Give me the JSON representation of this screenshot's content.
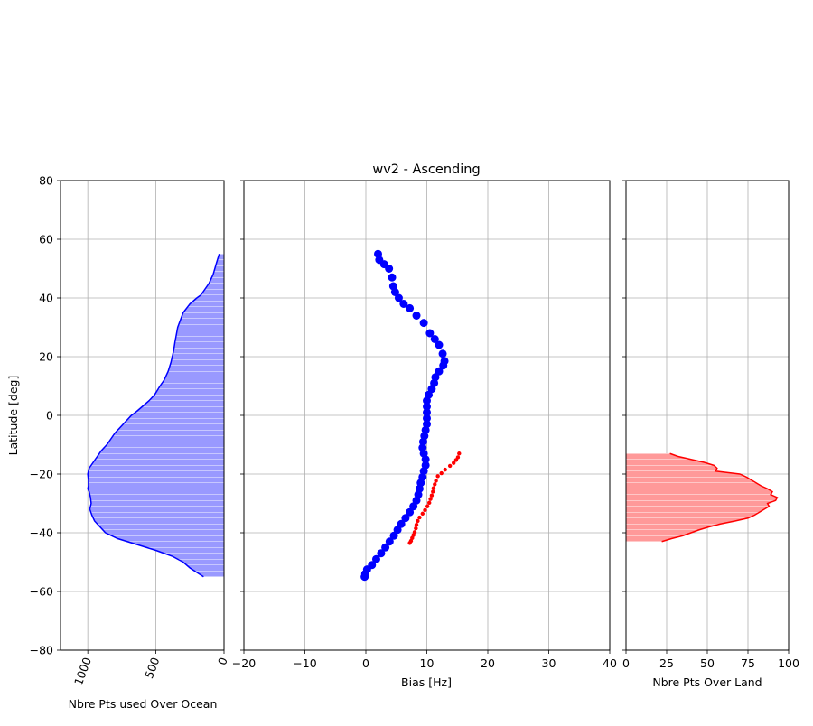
{
  "chart_data": [
    {
      "panel": "left",
      "type": "area",
      "orientation": "horizontal",
      "title": "",
      "xlabel": "Nbre Pts used Over Ocean",
      "ylabel": "Latitude [deg]",
      "xlim": [
        1200,
        0
      ],
      "ylim": [
        -80,
        80
      ],
      "xticks": [
        "1000",
        "500",
        "0"
      ],
      "xtick_values": [
        1000,
        500,
        0
      ],
      "xtick_rotation": "rotated ~70°",
      "yticks": [
        "80",
        "60",
        "40",
        "20",
        "0",
        "−20",
        "−40",
        "−60",
        "−80"
      ],
      "ytick_values": [
        80,
        60,
        40,
        20,
        0,
        -20,
        -40,
        -60,
        -80
      ],
      "grid": true,
      "color": "#0000ff",
      "fill_color": "#9999ff",
      "series": [
        {
          "lat": [
            55,
            52,
            48,
            45,
            43,
            41,
            40,
            38,
            35,
            30,
            25,
            22,
            20,
            18,
            15,
            12,
            10,
            7,
            5,
            3,
            1,
            0,
            -2,
            -4,
            -6,
            -8,
            -10,
            -12,
            -14,
            -16,
            -18,
            -20,
            -22,
            -24,
            -25,
            -26,
            -28,
            -30,
            -32,
            -34,
            -36,
            -38,
            -40,
            -42,
            -44,
            -46,
            -48,
            -50,
            -52,
            -55
          ],
          "counts": [
            35,
            55,
            80,
            110,
            140,
            170,
            200,
            250,
            300,
            340,
            360,
            370,
            380,
            390,
            410,
            440,
            470,
            510,
            550,
            600,
            650,
            680,
            720,
            760,
            800,
            830,
            860,
            900,
            930,
            960,
            990,
            1000,
            995,
            995,
            1000,
            990,
            980,
            975,
            985,
            970,
            950,
            910,
            870,
            780,
            640,
            500,
            380,
            300,
            250,
            150
          ]
        }
      ]
    },
    {
      "panel": "center",
      "type": "scatter",
      "title": "wv2 - Ascending",
      "xlabel": "Bias [Hz]",
      "ylabel": "",
      "xlim": [
        -20,
        40
      ],
      "ylim": [
        -80,
        80
      ],
      "xticks": [
        "−20",
        "−10",
        "0",
        "10",
        "20",
        "30",
        "40"
      ],
      "xtick_values": [
        -20,
        -10,
        0,
        10,
        20,
        30,
        40
      ],
      "grid": true,
      "series": [
        {
          "color": "#0000ff",
          "marker": "large",
          "x": [
            2,
            2.2,
            3,
            3.8,
            4.3,
            4.5,
            4.8,
            5.4,
            6.2,
            7.2,
            8.3,
            9.5,
            10.5,
            11.3,
            12,
            12.6,
            12.9,
            12.7,
            12,
            11.4,
            11.2,
            10.8,
            10.3,
            10,
            10,
            10,
            10,
            10,
            9.8,
            9.6,
            9.4,
            9.3,
            9.5,
            9.8,
            9.8,
            9.5,
            9.3,
            9,
            8.8,
            8.6,
            8.3,
            7.8,
            7.2,
            6.5,
            5.8,
            5.2,
            4.6,
            3.9,
            3.2,
            2.5,
            1.7,
            1,
            0.2,
            -0.1,
            -0.2
          ],
          "y": [
            55,
            53,
            51.5,
            50,
            47,
            44,
            42,
            40,
            38,
            36.5,
            34,
            31.5,
            28,
            26,
            24,
            21,
            18.5,
            17,
            15,
            13,
            11,
            9,
            7,
            5,
            3,
            1,
            -1,
            -3,
            -5,
            -7,
            -9,
            -11,
            -13,
            -15,
            -17,
            -19,
            -21,
            -23,
            -25,
            -27,
            -29,
            -31,
            -33,
            -35,
            -37,
            -39,
            -41,
            -43,
            -45,
            -47,
            -49,
            -51,
            -52.5,
            -54,
            -55
          ]
        },
        {
          "color": "#ff0000",
          "marker": "small",
          "x": [
            15.3,
            15.1,
            14.8,
            14.4,
            13.8,
            13,
            12.4,
            11.8,
            11.5,
            11.3,
            11.1,
            11,
            10.8,
            10.6,
            10.4,
            10.1,
            9.7,
            9.3,
            8.8,
            8.5,
            8.3,
            8.2,
            8,
            7.8,
            7.6,
            7.4,
            7.2
          ],
          "y": [
            -13,
            -14.3,
            -15.2,
            -16.2,
            -17.2,
            -18.5,
            -19.7,
            -20.7,
            -22.3,
            -23.5,
            -24.8,
            -26,
            -27.3,
            -28.5,
            -29.8,
            -31,
            -32.3,
            -33.5,
            -34.8,
            -36,
            -37.3,
            -38.5,
            -39.8,
            -40.8,
            -41.8,
            -42.8,
            -43.5
          ]
        }
      ]
    },
    {
      "panel": "right",
      "type": "area",
      "orientation": "horizontal",
      "title": "",
      "xlabel": "Nbre Pts Over Land",
      "ylabel": "",
      "xlim": [
        0,
        100
      ],
      "ylim": [
        -80,
        80
      ],
      "xticks": [
        "0",
        "25",
        "50",
        "75",
        "100"
      ],
      "xtick_values": [
        0,
        25,
        50,
        75,
        100
      ],
      "grid": true,
      "color": "#ff0000",
      "fill_color": "#ff9999",
      "series": [
        {
          "lat": [
            -13,
            -14,
            -15,
            -16,
            -17,
            -18,
            -19,
            -20,
            -21,
            -22,
            -23,
            -24,
            -25,
            -26,
            -27,
            -28,
            -29,
            -30,
            -31,
            -32,
            -33,
            -34,
            -35,
            -36,
            -37,
            -38,
            -39,
            -40,
            -41,
            -42,
            -43
          ],
          "counts": [
            27,
            32,
            40,
            48,
            54,
            56,
            55,
            70,
            74,
            77,
            80,
            83,
            87,
            90,
            89,
            93,
            92,
            87,
            88,
            85,
            82,
            79,
            75,
            67,
            58,
            51,
            45,
            40,
            35,
            28,
            22
          ]
        }
      ]
    }
  ]
}
